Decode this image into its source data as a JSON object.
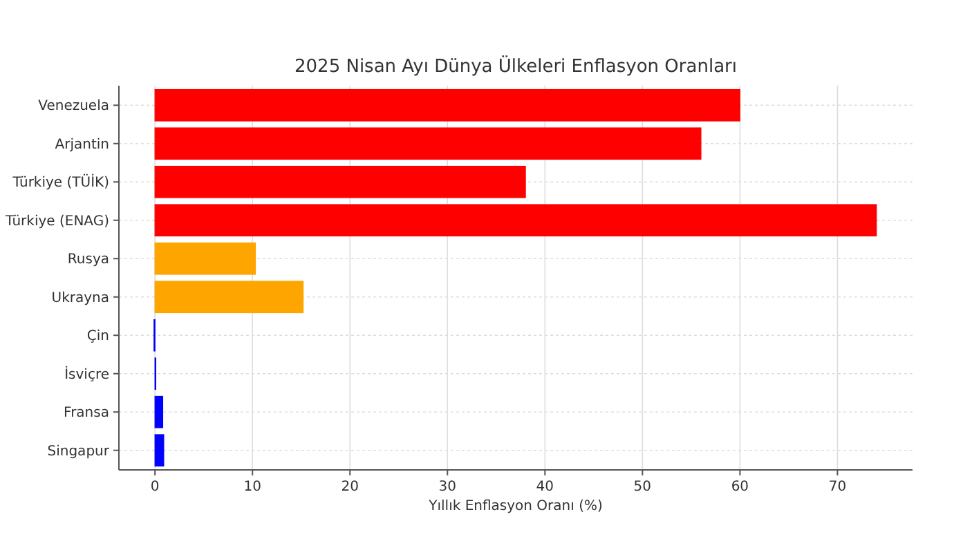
{
  "chart_data": {
    "type": "bar",
    "orientation": "horizontal",
    "title": "2025 Nisan Ayı Dünya Ülkeleri Enflasyon Oranları",
    "xlabel": "Yıllık Enflasyon Oranı (%)",
    "categories": [
      "Venezuela",
      "Arjantin",
      "Türkiye (TÜİK)",
      "Türkiye (ENAG)",
      "Rusya",
      "Ukrayna",
      "Çin",
      "İsviçre",
      "Fransa",
      "Singapur"
    ],
    "values": [
      60,
      56,
      38,
      74,
      10.3,
      15.2,
      -0.1,
      0,
      0.8,
      0.9
    ],
    "colors": [
      "#ff0000",
      "#ff0000",
      "#ff0000",
      "#ff0000",
      "#ffa500",
      "#ffa500",
      "#0000ff",
      "#0000ff",
      "#0000ff",
      "#0000ff"
    ],
    "xlim": [
      -3.7,
      77.7
    ],
    "xticks": [
      0,
      10,
      20,
      30,
      40,
      50,
      60,
      70
    ],
    "grid": true
  }
}
